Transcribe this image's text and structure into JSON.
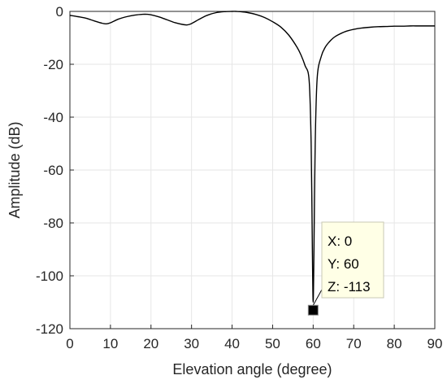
{
  "chart_data": {
    "type": "line",
    "title": "",
    "xlabel": "Elevation angle (degree)",
    "ylabel": "Amplitude (dB)",
    "xlim": [
      0,
      90
    ],
    "ylim": [
      -120,
      0
    ],
    "xticks": [
      0,
      10,
      20,
      30,
      40,
      50,
      60,
      70,
      80,
      90
    ],
    "yticks": [
      0,
      -20,
      -40,
      -60,
      -80,
      -100,
      -120
    ],
    "grid": true,
    "legend": "none",
    "colors": {
      "line": "#000000",
      "grid": "#e6e6e6",
      "axis": "#262626",
      "tip_bg": "#ffffe6",
      "tip_border": "#c8c8b4"
    },
    "series": [
      {
        "x": [
          0,
          2,
          4,
          6,
          8,
          9,
          10,
          12,
          14,
          16,
          18,
          19,
          20,
          22,
          24,
          26,
          28,
          29,
          30,
          32,
          34,
          36,
          38,
          40,
          41,
          42,
          44,
          46,
          48,
          50,
          52,
          54,
          56,
          57,
          58,
          59,
          59.5,
          59.8,
          60,
          60.2,
          60.5,
          61,
          62,
          63,
          64,
          65,
          66,
          68,
          70,
          72,
          74,
          76,
          78,
          80,
          82,
          84,
          86,
          88,
          90
        ],
        "y": [
          -1.5,
          -2.0,
          -2.6,
          -3.6,
          -4.5,
          -4.7,
          -4.3,
          -2.9,
          -2.0,
          -1.4,
          -1.1,
          -1.1,
          -1.3,
          -2.1,
          -3.2,
          -4.3,
          -5.0,
          -5.1,
          -4.6,
          -2.9,
          -1.4,
          -0.5,
          -0.1,
          0.0,
          0.0,
          -0.1,
          -0.5,
          -1.2,
          -2.3,
          -3.9,
          -5.9,
          -9.0,
          -13.5,
          -16.5,
          -20.5,
          -26.0,
          -50.0,
          -90.0,
          -110.0,
          -90.0,
          -50.0,
          -25.0,
          -17.0,
          -13.5,
          -11.5,
          -10.0,
          -9.0,
          -7.6,
          -6.8,
          -6.3,
          -6.0,
          -5.8,
          -5.7,
          -5.6,
          -5.6,
          -5.5,
          -5.5,
          -5.5,
          -5.5
        ]
      }
    ],
    "datatip": {
      "x_text": "X: 0",
      "y_text": "Y: 60",
      "z_text": "Z: -113",
      "marker_x": 60,
      "marker_y": -113
    }
  }
}
